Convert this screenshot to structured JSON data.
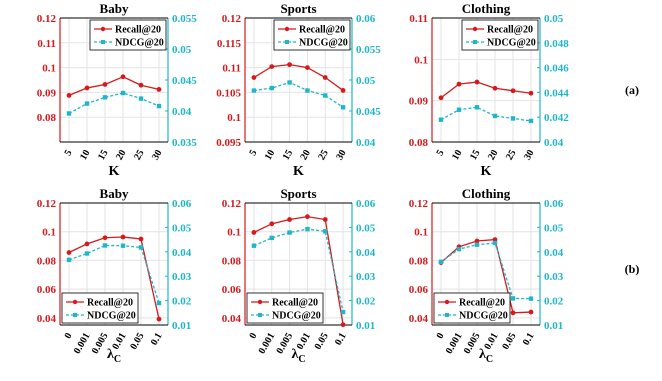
{
  "row_labels": [
    "(a)",
    "(b)"
  ],
  "colors": {
    "recall": "#d7191c",
    "ndcg": "#1fb6c9"
  },
  "chart_data": [
    {
      "type": "line",
      "title": "Baby",
      "xlabel": "K",
      "categories": [
        "5",
        "10",
        "15",
        "20",
        "25",
        "30"
      ],
      "ylim_left": [
        0.07,
        0.12
      ],
      "yticks_left": [
        "0.08",
        "0.09",
        "0.1",
        "0.11",
        "0.12"
      ],
      "ylim_right": [
        0.035,
        0.055
      ],
      "yticks_right": [
        "0.035",
        "0.04",
        "0.045",
        "0.05",
        "0.055"
      ],
      "series": [
        {
          "name": "Recall@20",
          "axis": "left",
          "values": [
            0.0888,
            0.0918,
            0.0932,
            0.0963,
            0.0929,
            0.0912
          ]
        },
        {
          "name": "NDCG@20",
          "axis": "right",
          "values": [
            0.0396,
            0.0412,
            0.0422,
            0.0429,
            0.042,
            0.0408
          ]
        }
      ],
      "legend": "top-right"
    },
    {
      "type": "line",
      "title": "Sports",
      "xlabel": "K",
      "categories": [
        "5",
        "10",
        "15",
        "20",
        "25",
        "30"
      ],
      "ylim_left": [
        0.095,
        0.12
      ],
      "yticks_left": [
        "0.095",
        "0.1",
        "0.105",
        "0.11",
        "0.115",
        "0.12"
      ],
      "ylim_right": [
        0.04,
        0.06
      ],
      "yticks_right": [
        "0.04",
        "0.045",
        "0.05",
        "0.055",
        "0.06"
      ],
      "series": [
        {
          "name": "Recall@20",
          "axis": "left",
          "values": [
            0.108,
            0.1102,
            0.1106,
            0.11,
            0.108,
            0.1054
          ]
        },
        {
          "name": "NDCG@20",
          "axis": "right",
          "values": [
            0.0483,
            0.0487,
            0.0496,
            0.0483,
            0.0475,
            0.0456
          ]
        }
      ],
      "legend": "top-right"
    },
    {
      "type": "line",
      "title": "Clothing",
      "xlabel": "K",
      "categories": [
        "5",
        "10",
        "15",
        "20",
        "25",
        "30"
      ],
      "ylim_left": [
        0.08,
        0.11
      ],
      "yticks_left": [
        "0.08",
        "0.09",
        "0.1",
        "0.11"
      ],
      "ylim_right": [
        0.04,
        0.05
      ],
      "yticks_right": [
        "0.04",
        "0.042",
        "0.044",
        "0.046",
        "0.048",
        "0.05"
      ],
      "series": [
        {
          "name": "Recall@20",
          "axis": "left",
          "values": [
            0.0907,
            0.094,
            0.0945,
            0.093,
            0.0924,
            0.0918
          ]
        },
        {
          "name": "NDCG@20",
          "axis": "right",
          "values": [
            0.0418,
            0.0426,
            0.0428,
            0.0421,
            0.0419,
            0.0417
          ]
        }
      ],
      "legend": "top-right"
    },
    {
      "type": "line",
      "title": "Baby",
      "xlabel": "λ",
      "xlabel_sub": "C",
      "categories": [
        "0",
        "0.001",
        "0.005",
        "0.01",
        "0.05",
        "0.1"
      ],
      "ylim_left": [
        0.035,
        0.12
      ],
      "yticks_left": [
        "0.04",
        "0.06",
        "0.08",
        "0.1",
        "0.12"
      ],
      "ylim_right": [
        0.01,
        0.06
      ],
      "yticks_right": [
        "0.01",
        "0.02",
        "0.03",
        "0.04",
        "0.05",
        "0.06"
      ],
      "series": [
        {
          "name": "Recall@20",
          "axis": "left",
          "values": [
            0.0855,
            0.0915,
            0.0958,
            0.0963,
            0.0949,
            0.0391
          ]
        },
        {
          "name": "NDCG@20",
          "axis": "right",
          "values": [
            0.0367,
            0.0393,
            0.0426,
            0.0425,
            0.0418,
            0.019
          ]
        }
      ],
      "legend": "bottom-left"
    },
    {
      "type": "line",
      "title": "Sports",
      "xlabel": "λ",
      "xlabel_sub": "C",
      "categories": [
        "0",
        "0.001",
        "0.005",
        "0.01",
        "0.05",
        "0.1"
      ],
      "ylim_left": [
        0.035,
        0.12
      ],
      "yticks_left": [
        "0.04",
        "0.06",
        "0.08",
        "0.1",
        "0.12"
      ],
      "ylim_right": [
        0.01,
        0.06
      ],
      "yticks_right": [
        "0.01",
        "0.02",
        "0.03",
        "0.04",
        "0.05",
        "0.06"
      ],
      "series": [
        {
          "name": "Recall@20",
          "axis": "left",
          "values": [
            0.0995,
            0.1055,
            0.1085,
            0.1105,
            0.1085,
            0.0352
          ]
        },
        {
          "name": "NDCG@20",
          "axis": "right",
          "values": [
            0.0425,
            0.0457,
            0.0479,
            0.0493,
            0.0484,
            0.0153
          ]
        }
      ],
      "legend": "bottom-left"
    },
    {
      "type": "line",
      "title": "Clothing",
      "xlabel": "λ",
      "xlabel_sub": "C",
      "categories": [
        "0",
        "0.001",
        "0.005",
        "0.01",
        "0.05",
        "0.1"
      ],
      "ylim_left": [
        0.035,
        0.12
      ],
      "yticks_left": [
        "0.04",
        "0.06",
        "0.08",
        "0.1",
        "0.12"
      ],
      "ylim_right": [
        0.01,
        0.06
      ],
      "yticks_right": [
        "0.01",
        "0.02",
        "0.03",
        "0.04",
        "0.05",
        "0.06"
      ],
      "series": [
        {
          "name": "Recall@20",
          "axis": "left",
          "values": [
            0.0785,
            0.0895,
            0.0935,
            0.0945,
            0.0435,
            0.044
          ]
        },
        {
          "name": "NDCG@20",
          "axis": "right",
          "values": [
            0.0359,
            0.0411,
            0.0429,
            0.0436,
            0.0209,
            0.0208
          ]
        }
      ],
      "legend": "bottom-left"
    }
  ]
}
